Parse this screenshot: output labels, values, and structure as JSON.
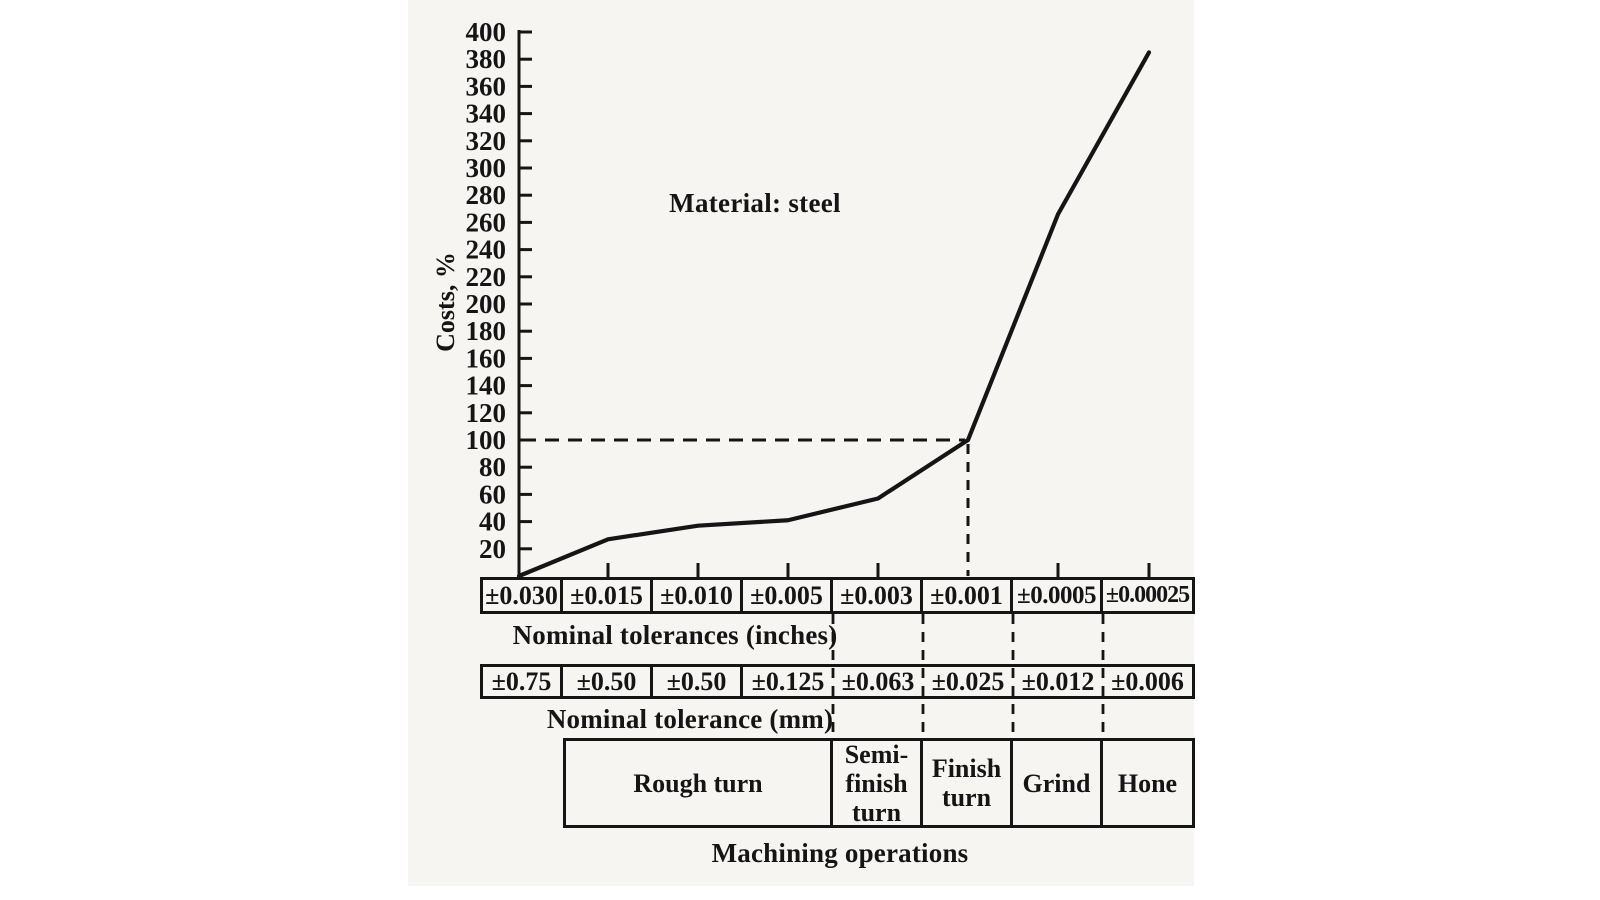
{
  "labels": {
    "material_note": "Material: steel",
    "y_axis": "Costs, %",
    "inches_row_label": "Nominal tolerances (inches)",
    "mm_row_label": "Nominal tolerance (mm)",
    "operations_label": "Machining operations"
  },
  "tables": {
    "inches": [
      "±0.030",
      "±0.015",
      "±0.010",
      "±0.005",
      "±0.003",
      "±0.001",
      "±0.0005",
      "±0.00025"
    ],
    "mm": [
      "±0.75",
      "±0.50",
      "±0.50",
      "±0.125",
      "±0.063",
      "±0.025",
      "±0.012",
      "±0.006"
    ],
    "operations": [
      "Rough turn",
      "Semi-finish turn",
      "Finish turn",
      "Grind",
      "Hone"
    ]
  },
  "chart_data": {
    "type": "line",
    "title": "",
    "annotation": "Material: steel",
    "ylabel": "Costs, %",
    "xlabel_rows": [
      "Nominal tolerances (inches)",
      "Nominal tolerance (mm)",
      "Machining operations"
    ],
    "ylim": [
      0,
      400
    ],
    "y_ticks": [
      20,
      40,
      60,
      80,
      100,
      120,
      140,
      160,
      180,
      200,
      220,
      240,
      260,
      280,
      300,
      320,
      340,
      360,
      380,
      400
    ],
    "categories_inches": [
      "±0.030",
      "±0.015",
      "±0.010",
      "±0.005",
      "±0.003",
      "±0.001",
      "±0.0005",
      "±0.00025"
    ],
    "categories_mm": [
      "±0.75",
      "±0.50",
      "±0.50",
      "±0.125",
      "±0.063",
      "±0.025",
      "±0.012",
      "±0.006"
    ],
    "operations": [
      "Rough turn",
      "Rough turn",
      "Rough turn",
      "Rough turn",
      "Semi-finish turn",
      "Finish turn",
      "Grind",
      "Hone"
    ],
    "values": [
      0,
      27,
      37,
      41,
      57,
      100,
      266,
      385
    ],
    "reference_point": {
      "cost_percent": 100,
      "tolerance_inches": "±0.001",
      "tolerance_mm": "±0.025",
      "operation": "Finish turn"
    },
    "grid": false,
    "legend": false
  },
  "colors": {
    "ink": "#151515",
    "paper": "#ffffff",
    "scan_tint": "#f6f5f2"
  }
}
